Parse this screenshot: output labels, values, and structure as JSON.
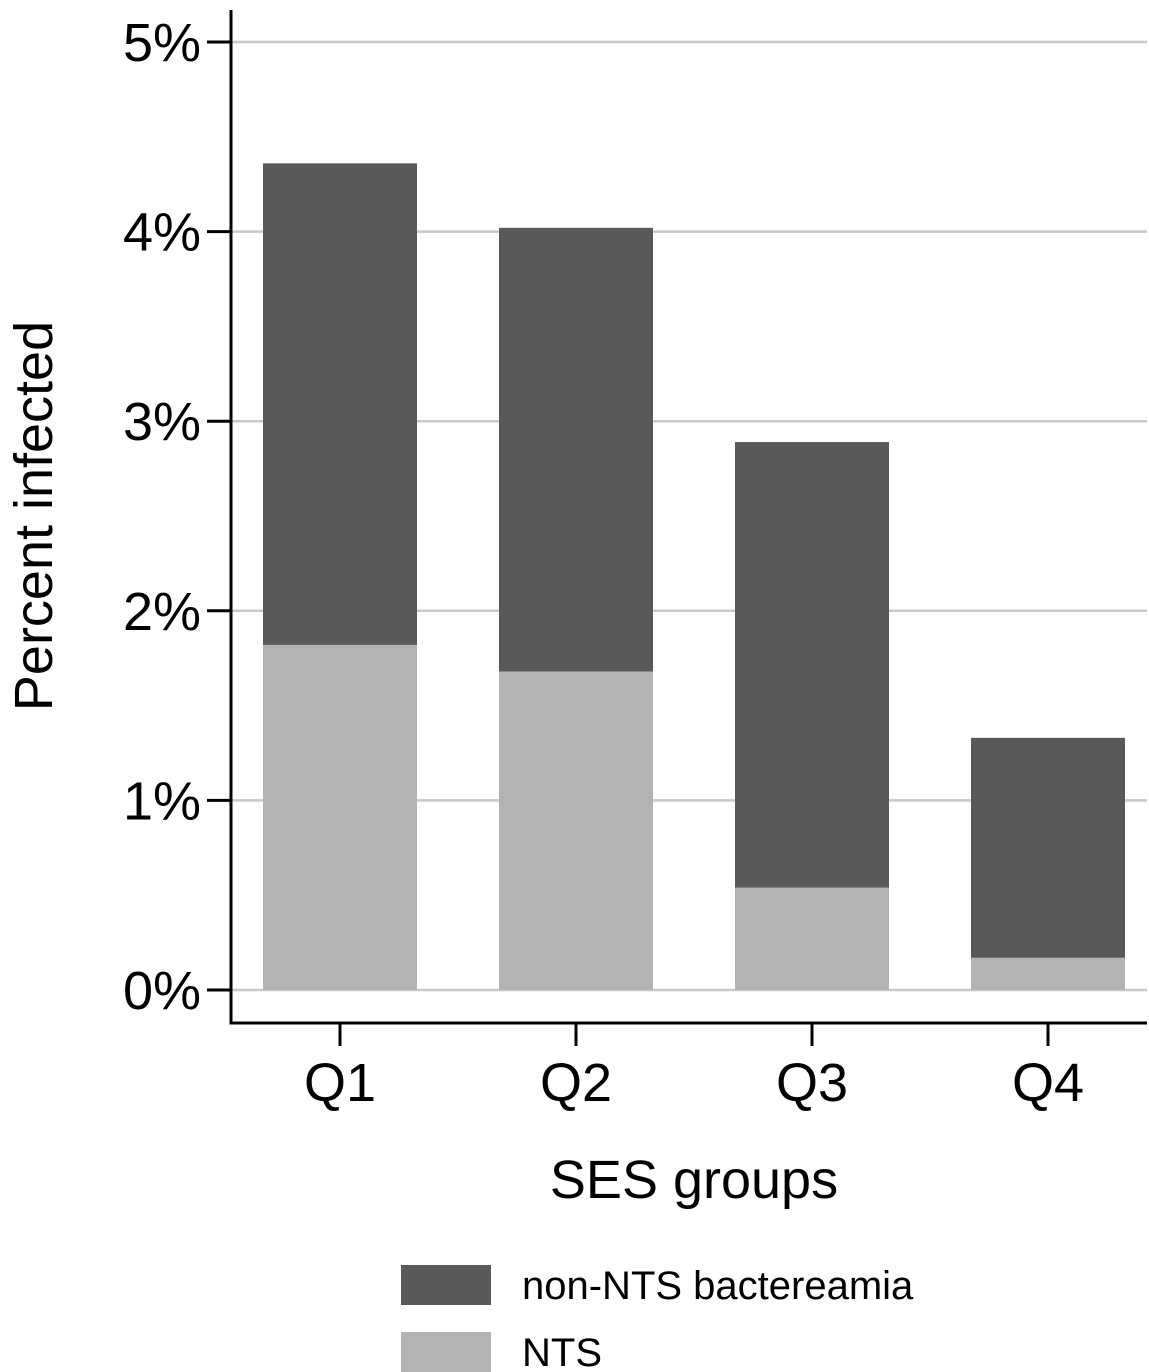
{
  "chart_data": {
    "type": "bar",
    "stacked": true,
    "title": "",
    "xlabel": "SES groups",
    "ylabel": "Percent infected",
    "categories": [
      "Q1",
      "Q2",
      "Q3",
      "Q4"
    ],
    "ylim": [
      0,
      5
    ],
    "yticks": [
      0,
      1,
      2,
      3,
      4,
      5
    ],
    "ytick_labels": [
      "0%",
      "1%",
      "2%",
      "3%",
      "4%",
      "5%"
    ],
    "grid": "horizontal",
    "legend_position": "bottom",
    "series": [
      {
        "name": "NTS",
        "color": "#b3b3b3",
        "values": [
          1.82,
          1.68,
          0.54,
          0.17
        ]
      },
      {
        "name": "non-NTS bactereamia",
        "color": "#595959",
        "values": [
          2.54,
          2.34,
          2.35,
          1.16
        ]
      }
    ],
    "legend": [
      {
        "label": "non-NTS bactereamia",
        "color": "#595959"
      },
      {
        "label": "NTS",
        "color": "#b3b3b3"
      }
    ]
  }
}
